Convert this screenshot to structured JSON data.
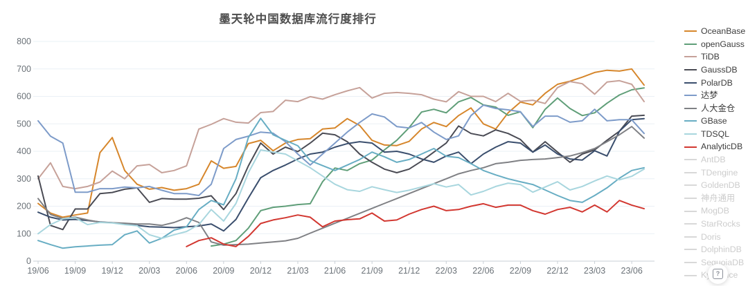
{
  "title": "墨天轮中国数据库流行度排行",
  "help_button": {
    "label": "?"
  },
  "axis_colors": {
    "grid": "#EAF0F6",
    "axis": "#C9CFD6",
    "tick_text": "#6B7278"
  },
  "chart_data": {
    "type": "line",
    "title": "墨天轮中国数据库流行度排行",
    "xlabel": "",
    "ylabel": "",
    "ylim": [
      0,
      800
    ],
    "y_ticks": [
      0,
      100,
      200,
      300,
      400,
      500,
      600,
      700,
      800
    ],
    "grid": true,
    "legend_position": "right",
    "x_unit": "month",
    "x_start": "2019/06",
    "x_end": "2023/07",
    "x_tick_labels": [
      "19/06",
      "19/09",
      "19/12",
      "20/03",
      "20/06",
      "20/09",
      "20/12",
      "21/03",
      "21/06",
      "21/09",
      "21/12",
      "22/03",
      "22/06",
      "22/09",
      "22/12",
      "23/03",
      "23/06"
    ],
    "series": [
      {
        "name": "OceanBase",
        "color": "#D6862B",
        "start": 0,
        "values": [
          210,
          175,
          160,
          168,
          175,
          395,
          450,
          330,
          280,
          262,
          268,
          258,
          264,
          280,
          365,
          338,
          345,
          428,
          440,
          402,
          430,
          443,
          446,
          481,
          485,
          519,
          494,
          440,
          423,
          421,
          436,
          481,
          505,
          490,
          530,
          558,
          500,
          481,
          540,
          579,
          569,
          611,
          644,
          655,
          670,
          687,
          695,
          692,
          700,
          641
        ]
      },
      {
        "name": "openGauss",
        "color": "#5F9E78",
        "start": 14,
        "values": [
          55,
          62,
          75,
          120,
          184,
          196,
          200,
          206,
          209,
          289,
          339,
          330,
          355,
          368,
          405,
          440,
          486,
          543,
          553,
          540,
          580,
          596,
          569,
          561,
          531,
          544,
          486,
          553,
          594,
          556,
          530,
          540,
          575,
          605,
          624,
          631
        ]
      },
      {
        "name": "TiDB",
        "color": "#C6A199",
        "start": 0,
        "values": [
          300,
          358,
          272,
          264,
          272,
          288,
          328,
          300,
          347,
          352,
          322,
          330,
          347,
          481,
          498,
          519,
          506,
          503,
          541,
          545,
          586,
          581,
          599,
          590,
          606,
          620,
          632,
          594,
          611,
          614,
          611,
          606,
          590,
          580,
          617,
          600,
          600,
          581,
          611,
          582,
          586,
          574,
          632,
          654,
          646,
          608,
          652,
          657,
          644,
          581
        ]
      },
      {
        "name": "GaussDB",
        "color": "#4A4B54",
        "start": 0,
        "values": [
          310,
          130,
          115,
          190,
          190,
          246,
          250,
          262,
          267,
          214,
          228,
          226,
          226,
          229,
          238,
          188,
          246,
          347,
          430,
          390,
          415,
          399,
          430,
          466,
          460,
          435,
          390,
          360,
          335,
          322,
          335,
          364,
          397,
          430,
          492,
          465,
          456,
          478,
          465,
          443,
          397,
          435,
          397,
          360,
          390,
          405,
          440,
          473,
          528,
          531
        ]
      },
      {
        "name": "PolarDB",
        "color": "#3A4E6D",
        "start": 0,
        "values": [
          178,
          160,
          150,
          152,
          148,
          143,
          140,
          135,
          130,
          125,
          124,
          122,
          125,
          128,
          135,
          110,
          152,
          230,
          304,
          330,
          350,
          372,
          390,
          397,
          415,
          428,
          435,
          430,
          397,
          400,
          390,
          372,
          360,
          383,
          397,
          355,
          390,
          415,
          435,
          430,
          397,
          423,
          390,
          372,
          368,
          402,
          383,
          473,
          515,
          519
        ]
      },
      {
        "name": "达梦",
        "color": "#7D9BC9",
        "start": 0,
        "values": [
          511,
          455,
          430,
          251,
          251,
          264,
          264,
          270,
          267,
          272,
          258,
          246,
          246,
          239,
          280,
          410,
          443,
          455,
          470,
          466,
          435,
          390,
          350,
          390,
          430,
          470,
          505,
          536,
          525,
          490,
          485,
          505,
          470,
          443,
          456,
          530,
          568,
          556,
          551,
          544,
          490,
          528,
          528,
          506,
          511,
          553,
          511,
          515,
          515,
          465
        ]
      },
      {
        "name": "人大金仓",
        "color": "#7F8084",
        "start": 0,
        "values": [
          228,
          170,
          155,
          160,
          150,
          142,
          140,
          138,
          135,
          135,
          130,
          141,
          158,
          141,
          70,
          58,
          60,
          62,
          66,
          70,
          74,
          83,
          102,
          120,
          138,
          156,
          174,
          192,
          210,
          228,
          246,
          264,
          282,
          300,
          318,
          330,
          340,
          355,
          360,
          367,
          370,
          372,
          377,
          383,
          395,
          410,
          435,
          460,
          490,
          448
        ]
      },
      {
        "name": "GBase",
        "color": "#67ADC3",
        "start": 0,
        "values": [
          75,
          60,
          47,
          52,
          55,
          58,
          60,
          96,
          110,
          66,
          83,
          113,
          125,
          188,
          221,
          205,
          300,
          450,
          520,
          460,
          440,
          420,
          366,
          348,
          330,
          350,
          370,
          397,
          380,
          360,
          370,
          390,
          410,
          382,
          377,
          355,
          330,
          314,
          300,
          289,
          279,
          259,
          239,
          221,
          214,
          239,
          267,
          302,
          330,
          340
        ]
      },
      {
        "name": "TDSQL",
        "color": "#A8D6DE",
        "start": 0,
        "values": [
          100,
          133,
          154,
          158,
          133,
          141,
          139,
          133,
          129,
          96,
          83,
          96,
          108,
          133,
          188,
          146,
          210,
          322,
          405,
          397,
          390,
          365,
          340,
          310,
          280,
          260,
          254,
          271,
          260,
          250,
          258,
          270,
          282,
          270,
          279,
          241,
          254,
          272,
          284,
          279,
          251,
          270,
          289,
          259,
          272,
          292,
          310,
          296,
          309,
          335
        ]
      },
      {
        "name": "AnalyticDB",
        "color": "#D23730",
        "start": 12,
        "values": [
          53,
          75,
          85,
          62,
          53,
          90,
          137,
          150,
          158,
          168,
          160,
          125,
          146,
          151,
          154,
          175,
          146,
          150,
          171,
          188,
          200,
          184,
          188,
          200,
          209,
          196,
          204,
          204,
          184,
          171,
          188,
          196,
          179,
          204,
          179,
          221,
          204,
          191
        ]
      }
    ],
    "disabled_series": [
      "AntDB",
      "TDengine",
      "GoldenDB",
      "神舟通用",
      "MogDB",
      "StarRocks",
      "Doris",
      "DolphinDB",
      "SequoiaDB",
      "Kyligence"
    ]
  },
  "legend": {
    "items": [
      {
        "label": "OceanBase",
        "color": "#D6862B",
        "active": true
      },
      {
        "label": "openGauss",
        "color": "#5F9E78",
        "active": true
      },
      {
        "label": "TiDB",
        "color": "#C6A199",
        "active": true
      },
      {
        "label": "GaussDB",
        "color": "#4A4B54",
        "active": true
      },
      {
        "label": "PolarDB",
        "color": "#3A4E6D",
        "active": true
      },
      {
        "label": "达梦",
        "color": "#7D9BC9",
        "active": true
      },
      {
        "label": "人大金仓",
        "color": "#7F8084",
        "active": true
      },
      {
        "label": "GBase",
        "color": "#67ADC3",
        "active": true
      },
      {
        "label": "TDSQL",
        "color": "#A8D6DE",
        "active": true
      },
      {
        "label": "AnalyticDB",
        "color": "#D23730",
        "active": true
      },
      {
        "label": "AntDB",
        "color": "#d8d8d8",
        "active": false
      },
      {
        "label": "TDengine",
        "color": "#d8d8d8",
        "active": false
      },
      {
        "label": "GoldenDB",
        "color": "#d8d8d8",
        "active": false
      },
      {
        "label": "神舟通用",
        "color": "#d8d8d8",
        "active": false
      },
      {
        "label": "MogDB",
        "color": "#d8d8d8",
        "active": false
      },
      {
        "label": "StarRocks",
        "color": "#d8d8d8",
        "active": false
      },
      {
        "label": "Doris",
        "color": "#d8d8d8",
        "active": false
      },
      {
        "label": "DolphinDB",
        "color": "#d8d8d8",
        "active": false
      },
      {
        "label": "SequoiaDB",
        "color": "#d8d8d8",
        "active": false
      },
      {
        "label": "Kyligence",
        "color": "#d8d8d8",
        "active": false
      }
    ]
  }
}
